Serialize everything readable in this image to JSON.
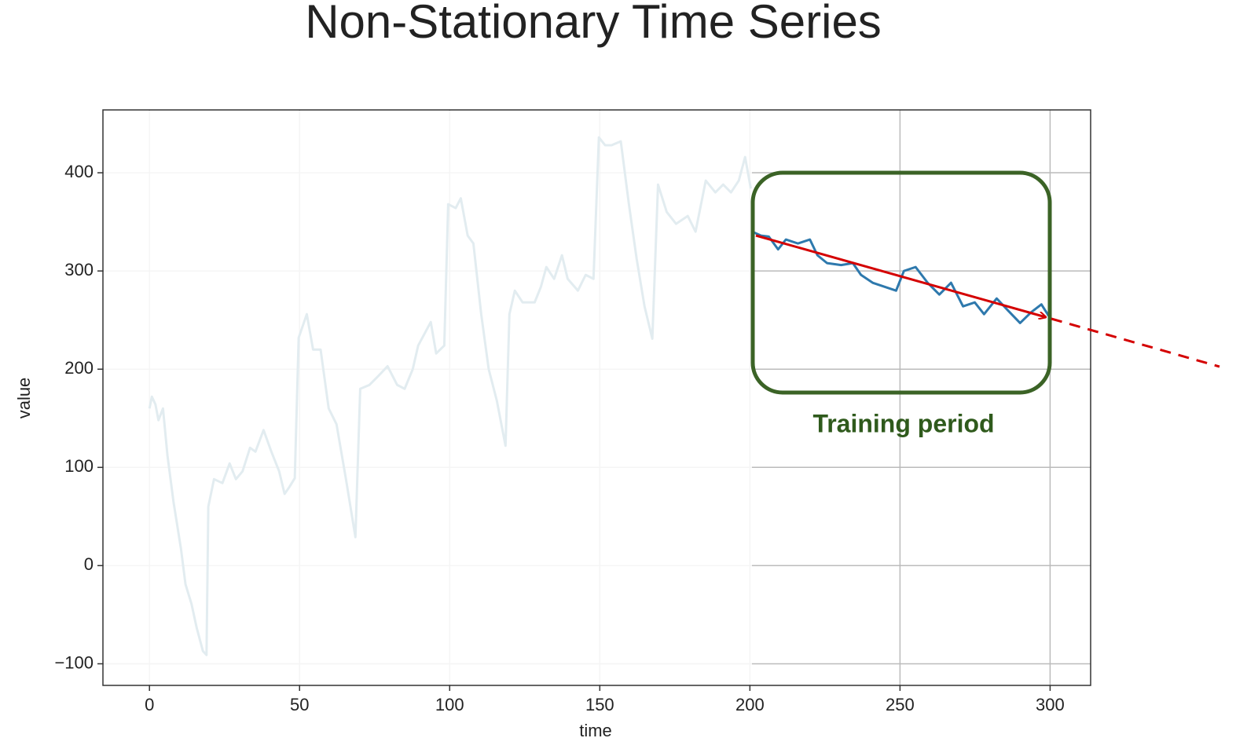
{
  "chart_data": {
    "type": "line",
    "title": "Non-Stationary Time Series",
    "xlabel": "time",
    "ylabel": "value",
    "xlim": [
      -15.5,
      313.5
    ],
    "ylim": [
      -122,
      464
    ],
    "xticks": [
      0,
      50,
      100,
      150,
      200,
      250,
      300
    ],
    "yticks": [
      {
        "value": -100,
        "label": "−100"
      },
      0,
      100,
      200,
      300,
      400
    ],
    "grid": true,
    "annotation": "Training period",
    "series": [
      {
        "color": "#e2ecf0",
        "x": [
          0,
          0.8,
          2,
          3,
          4.5,
          6,
          8,
          10.5,
          12,
          14,
          15.7,
          17.8,
          19,
          19.6,
          21.5,
          24.3,
          26.7,
          28.8,
          31,
          33.5,
          35.3,
          38,
          40.6,
          43.2,
          45,
          46.6,
          48.4,
          49.7,
          52.4,
          54.5,
          57,
          59.7,
          62.3,
          65.4,
          68.6,
          70.2,
          73.3,
          75.9,
          79.3,
          82.5,
          85,
          87.7,
          89.5,
          93.7,
          95.5,
          98.2,
          99.5,
          102,
          103.7,
          106,
          107.9,
          110.5,
          113,
          115.7,
          118.6,
          119.9,
          121.7,
          124.3,
          128.3,
          130.4,
          132.2,
          134.8,
          137.4,
          139.3,
          142.7,
          145.3,
          147.9,
          149.7,
          151.8,
          153.9,
          157,
          159.7,
          162.3,
          164.9,
          167.5,
          169.4,
          172.3,
          175.4,
          179.3,
          181.9,
          185.3,
          188.5,
          191.1,
          193.7,
          196.3,
          198.4,
          200.3
        ],
        "values": [
          160,
          172,
          164,
          148,
          160,
          112,
          65,
          17,
          -19,
          -39,
          -63,
          -87,
          -91,
          60,
          88,
          84,
          104,
          88,
          96,
          120,
          116,
          138,
          116,
          96,
          73,
          80,
          89,
          232,
          256,
          220,
          220,
          160,
          144,
          89,
          29,
          180,
          184,
          192,
          203,
          184,
          180,
          200,
          224,
          248,
          216,
          224,
          368,
          364,
          374,
          336,
          328,
          256,
          200,
          168,
          122,
          256,
          280,
          268,
          268,
          284,
          304,
          292,
          316,
          292,
          280,
          296,
          292,
          436,
          428,
          428,
          432,
          368,
          312,
          264,
          231,
          388,
          360,
          348,
          356,
          340,
          392,
          380,
          388,
          380,
          392,
          416,
          384
        ]
      },
      {
        "color": "#2e79ad",
        "x": [
          200.8,
          203.7,
          206.3,
          209.4,
          212,
          216,
          220,
          222.5,
          225.7,
          230.4,
          234.3,
          237,
          240.9,
          244.8,
          248.7,
          251.3,
          255.2,
          259.2,
          263.1,
          267,
          271,
          274.9,
          278,
          282.2,
          285.9,
          290,
          293.7,
          297.1,
          300
        ],
        "values": [
          340,
          336,
          335,
          322,
          332,
          328,
          332,
          316,
          308,
          306,
          308,
          296,
          288,
          284,
          280,
          300,
          304,
          288,
          276,
          288,
          264,
          268,
          256,
          272,
          260,
          247,
          258,
          266,
          252
        ]
      }
    ]
  }
}
